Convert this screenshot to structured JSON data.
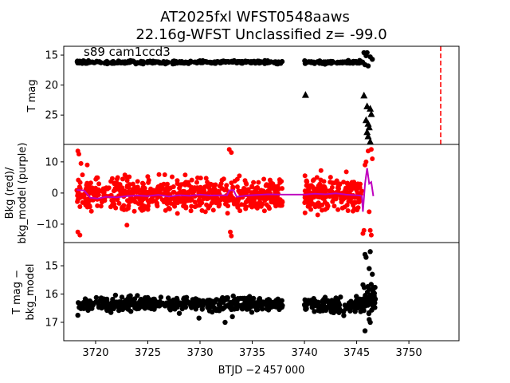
{
  "chart_data": {
    "type": "scatter",
    "title_line1": "AT2025fxl  WFST0548aaws",
    "title_line2": "22.16g-WFST Unclassified z= -99.0",
    "annotation": "s89 cam1ccd3",
    "xlabel": "BTJD −2 457 000",
    "xlim": [
      3716.95,
      3754.8
    ],
    "xticks": [
      "3720",
      "3725",
      "3730",
      "3735",
      "3740",
      "3745",
      "3750"
    ],
    "xtick_values": [
      3720,
      3725,
      3730,
      3735,
      3740,
      3745,
      3750
    ],
    "marker_line": {
      "x": 3753.05,
      "color": "#ff0000",
      "style": "dashed"
    },
    "panels": [
      {
        "ylabel": "T mag",
        "ylim": [
          29.9,
          13.53
        ],
        "yticks": [
          "15",
          "20",
          "25"
        ],
        "ytick_values": [
          15,
          20,
          25
        ],
        "color": "#000000",
        "segments": [
          {
            "x": [
              3718.2,
              3737.9
            ],
            "mean": 16.2,
            "sd": 0.12,
            "n": 260
          },
          {
            "x": [
              3740.0,
              3745.6
            ],
            "mean": 16.2,
            "sd": 0.12,
            "n": 90
          }
        ],
        "extra_points": [
          [
            3745.7,
            14.6
          ],
          [
            3745.9,
            15.1
          ],
          [
            3746.0,
            14.6
          ],
          [
            3746.3,
            15.3
          ],
          [
            3746.5,
            15.7
          ],
          [
            3745.8,
            16.6
          ],
          [
            3746.1,
            16.8
          ]
        ],
        "upper_limits": [
          [
            3740.1,
            21.6
          ],
          [
            3745.7,
            21.7
          ],
          [
            3746.0,
            23.5
          ],
          [
            3746.3,
            23.9
          ],
          [
            3746.4,
            24.8
          ],
          [
            3745.9,
            25.8
          ],
          [
            3746.1,
            26.4
          ],
          [
            3746.2,
            27.0
          ],
          [
            3746.0,
            27.8
          ],
          [
            3746.1,
            28.5
          ],
          [
            3746.3,
            29.4
          ]
        ]
      },
      {
        "ylabel_line1": "Bkg (red)/",
        "ylabel_line2": "bkg_model (purple)",
        "ylim": [
          -15.9,
          15.6
        ],
        "yticks": [
          "−10",
          "0",
          "10"
        ],
        "ytick_values": [
          -10,
          0,
          10
        ],
        "color": "#ff0000",
        "model_color": "#bf00bf",
        "segments": [
          {
            "x": [
              3718.2,
              3737.9
            ],
            "mean": -0.5,
            "sd": 2.6,
            "n": 650
          },
          {
            "x": [
              3740.0,
              3745.5
            ],
            "mean": -0.3,
            "sd": 2.6,
            "n": 220
          }
        ],
        "extra_points": [
          [
            3718.3,
            13.5
          ],
          [
            3718.4,
            12.5
          ],
          [
            3718.3,
            -12.5
          ],
          [
            3718.5,
            -13.5
          ],
          [
            3718.6,
            9.5
          ],
          [
            3719.2,
            9
          ],
          [
            3723.0,
            -10.3
          ],
          [
            3732.8,
            14
          ],
          [
            3733.0,
            13
          ],
          [
            3732.9,
            -12.5
          ],
          [
            3733.0,
            -13.8
          ],
          [
            3745.6,
            -13
          ],
          [
            3745.7,
            -12
          ],
          [
            3745.9,
            10
          ],
          [
            3746.1,
            13.5
          ],
          [
            3746.4,
            14
          ],
          [
            3746.5,
            11
          ],
          [
            3746.3,
            -12
          ],
          [
            3746.4,
            -13.5
          ],
          [
            3745.8,
            9
          ],
          [
            3746.2,
            -6
          ]
        ],
        "model": [
          [
            3718.2,
            1
          ],
          [
            3718.9,
            0.8
          ],
          [
            3719.5,
            -1.5
          ],
          [
            3720.2,
            -1.8
          ],
          [
            3721,
            -1.2
          ],
          [
            3722,
            -1.4
          ],
          [
            3723,
            -1
          ],
          [
            3724,
            -0.8
          ],
          [
            3725,
            -1.0
          ],
          [
            3726,
            -0.6
          ],
          [
            3727,
            -1.1
          ],
          [
            3728,
            -0.7
          ],
          [
            3729,
            -0.9
          ],
          [
            3730,
            -0.5
          ],
          [
            3731,
            -0.8
          ],
          [
            3732.6,
            -0.7
          ],
          [
            3732.8,
            0.8
          ],
          [
            3733.2,
            1
          ],
          [
            3733.5,
            -1.2
          ],
          [
            3734.5,
            -0.8
          ],
          [
            3735.5,
            -0.6
          ],
          [
            3736.5,
            -0.4
          ],
          [
            3737.9,
            -0.5
          ],
          [
            3740,
            -0.5
          ],
          [
            3741,
            -0.2
          ],
          [
            3742,
            -0.4
          ],
          [
            3743,
            -0.1
          ],
          [
            3744,
            -0.5
          ],
          [
            3745.3,
            -0.8
          ],
          [
            3745.5,
            -1
          ],
          [
            3745.6,
            -6
          ],
          [
            3745.8,
            3
          ],
          [
            3746.0,
            8
          ],
          [
            3746.2,
            3
          ],
          [
            3746.4,
            3.5
          ],
          [
            3746.6,
            -1
          ]
        ]
      },
      {
        "ylabel_line1": "T mag −",
        "ylabel_line2": "bkg_model",
        "ylim": [
          17.65,
          14.18
        ],
        "yticks": [
          "15",
          "16",
          "17"
        ],
        "ytick_values": [
          15,
          16,
          17
        ],
        "color": "#000000",
        "segments": [
          {
            "x": [
              3718.2,
              3737.9
            ],
            "mean": 16.35,
            "sd": 0.12,
            "n": 420
          },
          {
            "x": [
              3740.0,
              3745.5
            ],
            "mean": 16.4,
            "sd": 0.13,
            "n": 150
          },
          {
            "x": [
              3745.6,
              3746.8
            ],
            "mean": 16.2,
            "sd": 0.3,
            "n": 40
          }
        ],
        "extra_points": [
          [
            3745.8,
            14.6
          ],
          [
            3745.9,
            14.7
          ],
          [
            3746.3,
            14.5
          ],
          [
            3746.2,
            15.1
          ],
          [
            3746.5,
            15.3
          ],
          [
            3746.2,
            16.9
          ],
          [
            3746.3,
            17.0
          ],
          [
            3745.8,
            17.3
          ],
          [
            3718.3,
            16.75
          ],
          [
            3732.4,
            17.0
          ],
          [
            3733.1,
            16.8
          ],
          [
            3729.9,
            16.85
          ]
        ]
      }
    ]
  }
}
